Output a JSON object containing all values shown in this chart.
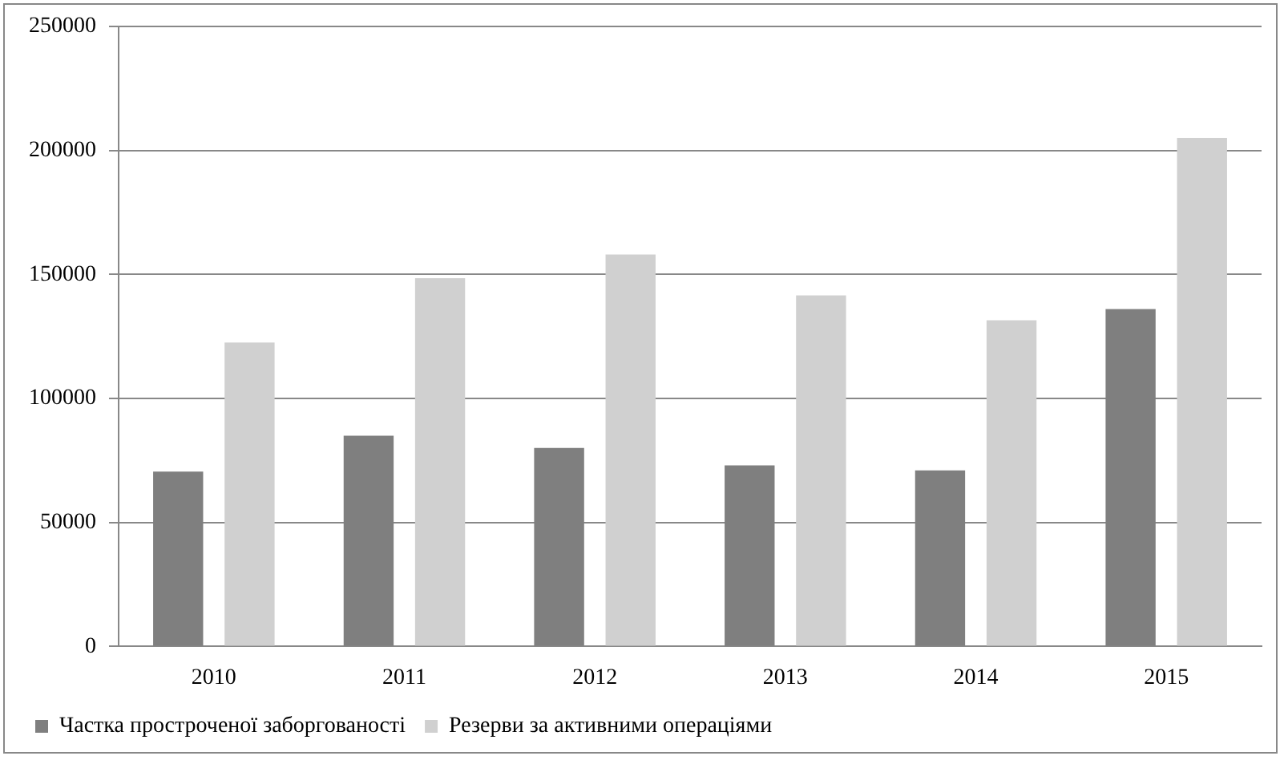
{
  "chart_data": {
    "type": "bar",
    "categories": [
      "2010",
      "2011",
      "2012",
      "2013",
      "2014",
      "2015"
    ],
    "series": [
      {
        "name": "Частка простроченої заборгованості",
        "color": "#7f7f7f",
        "values": [
          70500,
          85000,
          80000,
          73000,
          71000,
          136000
        ]
      },
      {
        "name": "Резерви за активними операціями",
        "color": "#d0d0d0",
        "values": [
          122500,
          148500,
          158000,
          141500,
          131500,
          205000
        ]
      }
    ],
    "ylim": [
      0,
      250000
    ],
    "yticks": [
      0,
      50000,
      100000,
      150000,
      200000,
      250000
    ],
    "grid": "y",
    "legend": "bottom left"
  }
}
